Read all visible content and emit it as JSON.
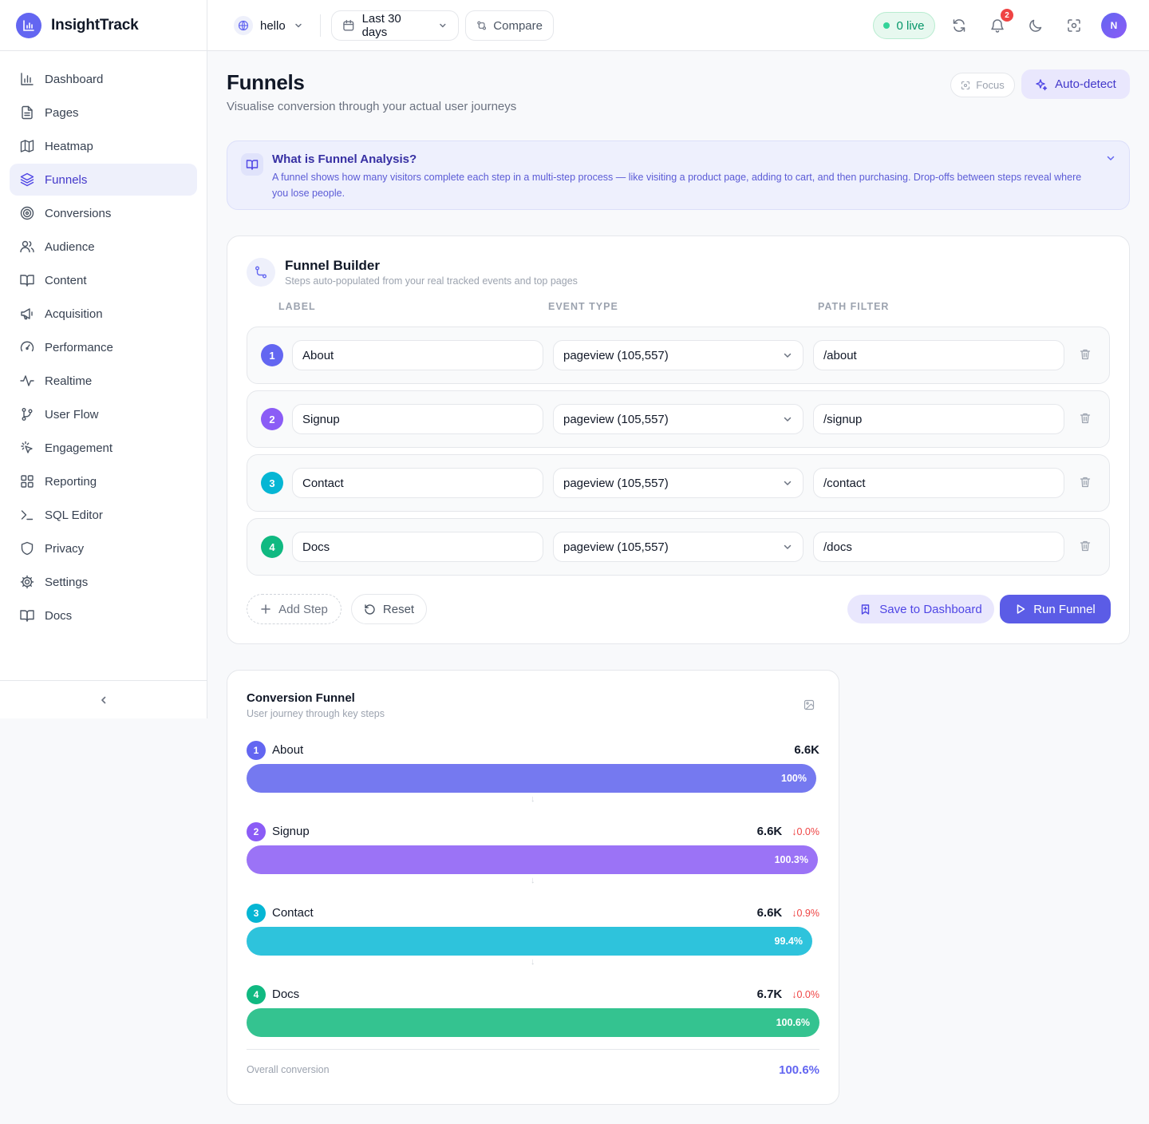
{
  "app": {
    "name": "InsightTrack"
  },
  "sidebar": {
    "items": [
      {
        "label": "Dashboard",
        "icon": "bar-chart-icon",
        "active": false
      },
      {
        "label": "Pages",
        "icon": "file-text-icon",
        "active": false
      },
      {
        "label": "Heatmap",
        "icon": "map-icon",
        "active": false
      },
      {
        "label": "Funnels",
        "icon": "layers-icon",
        "active": true
      },
      {
        "label": "Conversions",
        "icon": "target-icon",
        "active": false
      },
      {
        "label": "Audience",
        "icon": "users-icon",
        "active": false
      },
      {
        "label": "Content",
        "icon": "book-open-icon",
        "active": false
      },
      {
        "label": "Acquisition",
        "icon": "megaphone-icon",
        "active": false
      },
      {
        "label": "Performance",
        "icon": "gauge-icon",
        "active": false
      },
      {
        "label": "Realtime",
        "icon": "activity-icon",
        "active": false
      },
      {
        "label": "User Flow",
        "icon": "git-branch-icon",
        "active": false
      },
      {
        "label": "Engagement",
        "icon": "pointer-click-icon",
        "active": false
      },
      {
        "label": "Reporting",
        "icon": "layout-grid-icon",
        "active": false
      },
      {
        "label": "SQL Editor",
        "icon": "terminal-icon",
        "active": false
      },
      {
        "label": "Privacy",
        "icon": "shield-icon",
        "active": false
      },
      {
        "label": "Settings",
        "icon": "gear-icon",
        "active": false
      },
      {
        "label": "Docs",
        "icon": "book-open-icon",
        "active": false
      }
    ],
    "collapse_icon": "chevron-left-icon"
  },
  "topbar": {
    "site": "hello",
    "date_range": "Last 30 days",
    "compare": "Compare",
    "live": "0 live",
    "notifications": "2",
    "avatar": "N"
  },
  "header": {
    "title": "Funnels",
    "subtitle": "Visualise conversion through your actual user journeys",
    "focus": "Focus",
    "autodetect": "Auto-detect"
  },
  "info": {
    "title": "What is Funnel Analysis?",
    "text": "A funnel shows how many visitors complete each step in a multi-step process — like visiting a product page, adding to cart, and then purchasing. Drop-offs between steps reveal where you lose people."
  },
  "builder": {
    "title": "Funnel Builder",
    "subtitle": "Steps auto-populated from your real tracked events and top pages",
    "columns": {
      "label": "LABEL",
      "event_type": "EVENT TYPE",
      "path_filter": "PATH FILTER"
    },
    "steps": [
      {
        "num": "1",
        "label": "About",
        "event": "pageview (105,557)",
        "path": "/about",
        "color": "#6366f1"
      },
      {
        "num": "2",
        "label": "Signup",
        "event": "pageview (105,557)",
        "path": "/signup",
        "color": "#8b5cf6"
      },
      {
        "num": "3",
        "label": "Contact",
        "event": "pageview (105,557)",
        "path": "/contact",
        "color": "#06b6d4"
      },
      {
        "num": "4",
        "label": "Docs",
        "event": "pageview (105,557)",
        "path": "/docs",
        "color": "#10b981"
      }
    ],
    "add_step": "Add Step",
    "reset": "Reset",
    "save": "Save to Dashboard",
    "run": "Run Funnel"
  },
  "conversion": {
    "title": "Conversion Funnel",
    "subtitle": "User journey through key steps",
    "steps": [
      {
        "num": "1",
        "label": "About",
        "count": "6.6K",
        "drop": "",
        "pct": "100%",
        "fill": 0.994,
        "color": "#7579f0",
        "badge": "#6366f1"
      },
      {
        "num": "2",
        "label": "Signup",
        "count": "6.6K",
        "drop": "↓0.0%",
        "pct": "100.3%",
        "fill": 0.997,
        "color": "#9b73f6",
        "badge": "#8b5cf6"
      },
      {
        "num": "3",
        "label": "Contact",
        "count": "6.6K",
        "drop": "↓0.9%",
        "pct": "99.4%",
        "fill": 0.988,
        "color": "#2ec3dc",
        "badge": "#06b6d4"
      },
      {
        "num": "4",
        "label": "Docs",
        "count": "6.7K",
        "drop": "↓0.0%",
        "pct": "100.6%",
        "fill": 1.0,
        "color": "#34c390",
        "badge": "#10b981"
      }
    ],
    "arrow": "↓",
    "overall_label": "Overall conversion",
    "overall_value": "100.6%"
  }
}
